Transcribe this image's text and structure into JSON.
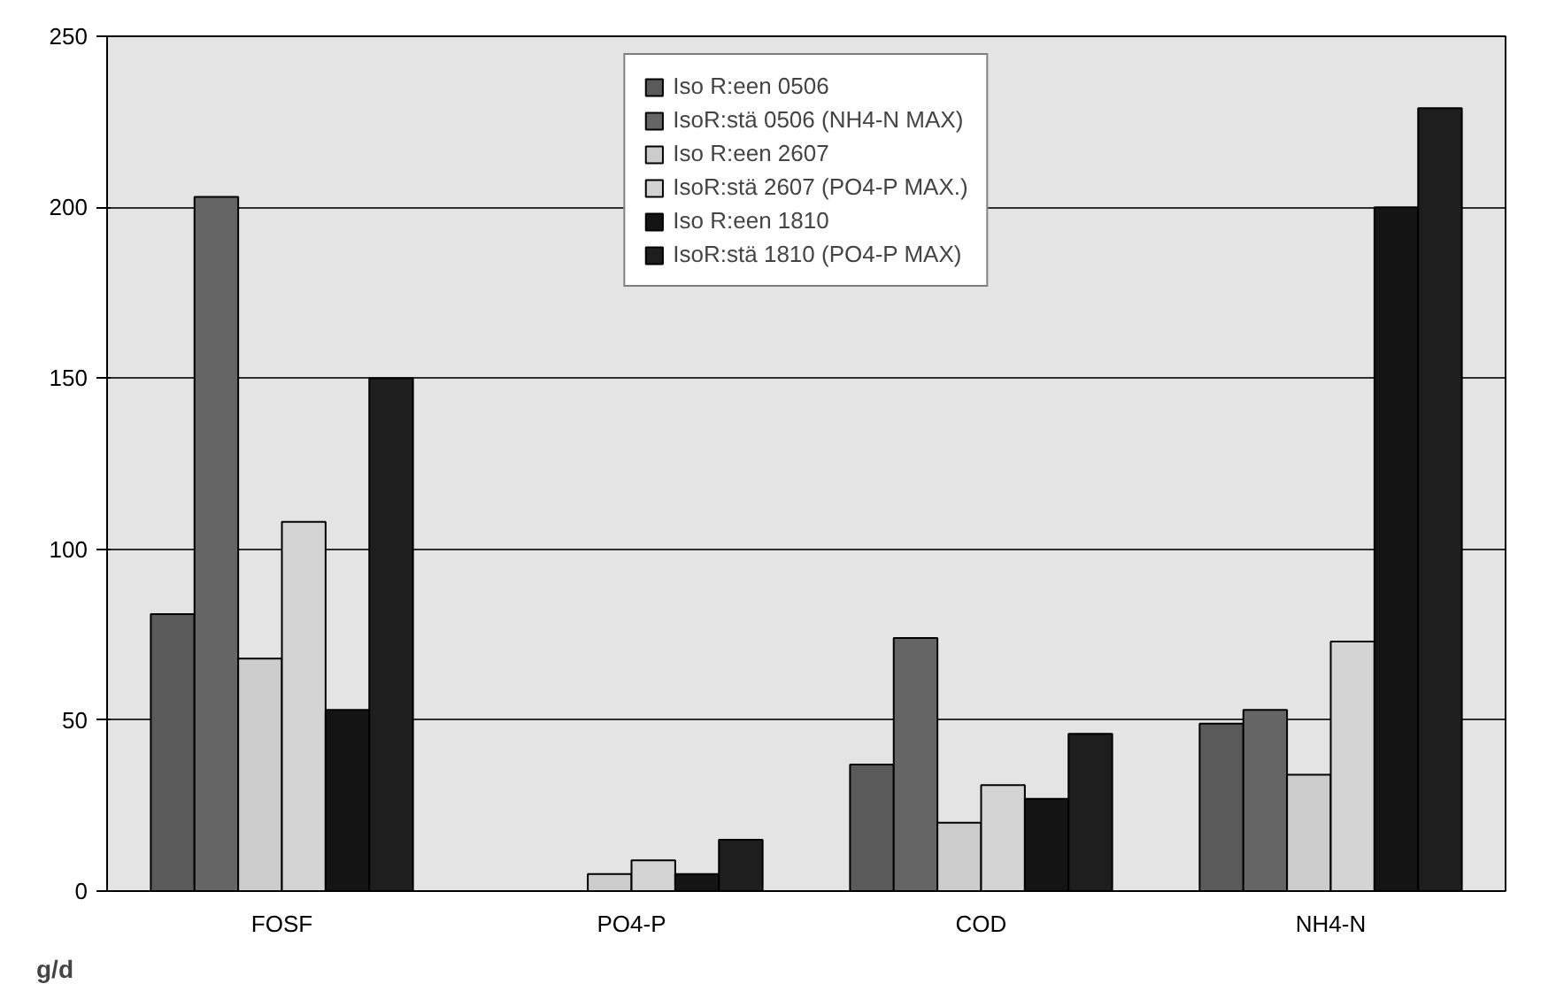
{
  "chart_data": {
    "type": "bar",
    "ylabel": "g/d",
    "categories": [
      "FOSF",
      "PO4-P",
      "COD",
      "NH4-N"
    ],
    "series": [
      {
        "name": "Iso R:een 0506",
        "color": "#5a5a5a",
        "values": [
          81,
          null,
          37,
          49
        ]
      },
      {
        "name": "IsoR:stä 0506 (NH4-N MAX)",
        "color": "#656565",
        "values": [
          203,
          null,
          74,
          53
        ]
      },
      {
        "name": "Iso R:een 2607",
        "color": "#cccccc",
        "values": [
          68,
          5,
          20,
          34
        ]
      },
      {
        "name": "IsoR:stä 2607 (PO4-P MAX.)",
        "color": "#d4d4d4",
        "values": [
          108,
          9,
          31,
          73
        ]
      },
      {
        "name": "Iso R:een 1810",
        "color": "#141414",
        "values": [
          53,
          5,
          27,
          200
        ]
      },
      {
        "name": "IsoR:stä 1810 (PO4-P MAX)",
        "color": "#1e1e1e",
        "values": [
          150,
          15,
          46,
          229
        ]
      }
    ],
    "ylim": [
      0,
      250
    ],
    "yticks": [
      0,
      50,
      100,
      150,
      200,
      250
    ],
    "grid": "y",
    "legend": "top"
  }
}
